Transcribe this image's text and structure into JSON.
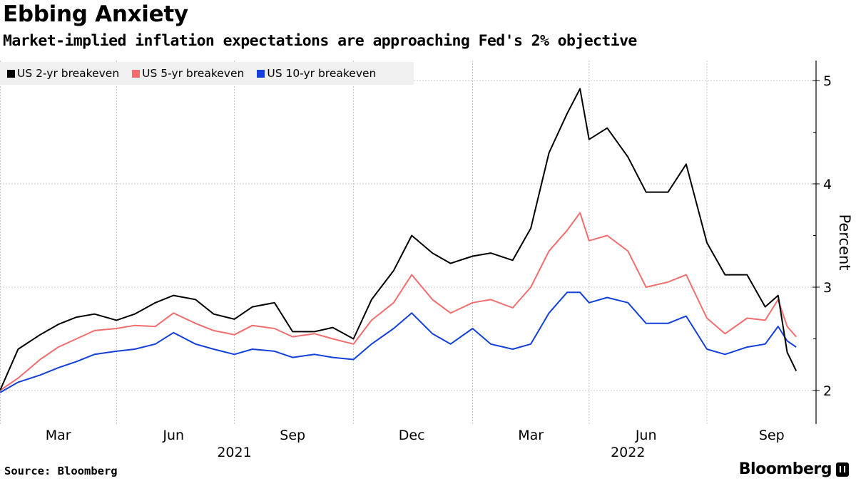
{
  "header": {
    "title": "Ebbing Anxiety",
    "subtitle": "Market-implied inflation expectations are approaching Fed's 2% objective"
  },
  "footer": {
    "source": "Source: Bloomberg",
    "logo_text": "Bloomberg"
  },
  "chart_data": {
    "type": "line",
    "title": "Ebbing Anxiety",
    "subtitle": "Market-implied inflation expectations are approaching Fed's 2% objective",
    "ylabel": "Percent",
    "xlabel": "",
    "ylim": [
      1.68,
      5.19
    ],
    "yticks": [
      2,
      3,
      4,
      5
    ],
    "y_axis_side": "right",
    "grid": true,
    "legend_placement": "top-left",
    "x_tick_labels": [
      "Mar",
      "Jun",
      "Sep",
      "Dec",
      "Mar",
      "Jun",
      "Sep"
    ],
    "x_tick_dates": [
      "2021-02-15",
      "2021-05-15",
      "2021-08-15",
      "2021-11-15",
      "2022-02-15",
      "2022-05-15",
      "2022-08-20"
    ],
    "x_year_labels": [
      {
        "label": "2021",
        "date": "2021-07-01"
      },
      {
        "label": "2022",
        "date": "2022-05-01"
      }
    ],
    "x_gridline_dates": [
      "2021-04-01",
      "2021-07-01",
      "2021-10-01",
      "2022-01-01",
      "2022-04-01",
      "2022-07-01"
    ],
    "x_range": [
      "2021-01-01",
      "2022-09-15"
    ],
    "x": [
      "2021-01-01",
      "2021-01-15",
      "2021-02-01",
      "2021-02-15",
      "2021-03-01",
      "2021-03-15",
      "2021-04-01",
      "2021-04-15",
      "2021-05-01",
      "2021-05-15",
      "2021-06-01",
      "2021-06-15",
      "2021-07-01",
      "2021-07-15",
      "2021-08-01",
      "2021-08-15",
      "2021-09-01",
      "2021-09-15",
      "2021-10-01",
      "2021-10-15",
      "2021-11-01",
      "2021-11-15",
      "2021-12-01",
      "2021-12-15",
      "2022-01-01",
      "2022-01-15",
      "2022-02-01",
      "2022-02-15",
      "2022-03-01",
      "2022-03-15",
      "2022-03-25",
      "2022-04-01",
      "2022-04-15",
      "2022-05-01",
      "2022-05-15",
      "2022-06-01",
      "2022-06-15",
      "2022-07-01",
      "2022-07-15",
      "2022-08-01",
      "2022-08-15",
      "2022-08-25",
      "2022-09-01",
      "2022-09-08"
    ],
    "series": [
      {
        "name": "US 2-yr breakeven",
        "color": "#000000",
        "values": [
          2.0,
          2.4,
          2.54,
          2.64,
          2.71,
          2.74,
          2.68,
          2.74,
          2.85,
          2.92,
          2.88,
          2.74,
          2.69,
          2.81,
          2.85,
          2.57,
          2.57,
          2.61,
          2.5,
          2.88,
          3.16,
          3.5,
          3.33,
          3.23,
          3.3,
          3.33,
          3.26,
          3.57,
          4.3,
          4.68,
          4.92,
          4.43,
          4.54,
          4.26,
          3.92,
          3.92,
          4.19,
          3.43,
          3.12,
          3.12,
          2.81,
          2.92,
          2.37,
          2.19
        ]
      },
      {
        "name": "US 5-yr breakeven",
        "color": "#f26d6d",
        "values": [
          2.0,
          2.12,
          2.3,
          2.42,
          2.5,
          2.58,
          2.6,
          2.63,
          2.62,
          2.75,
          2.65,
          2.58,
          2.54,
          2.63,
          2.6,
          2.52,
          2.55,
          2.5,
          2.45,
          2.68,
          2.85,
          3.12,
          2.88,
          2.75,
          2.85,
          2.88,
          2.8,
          3.0,
          3.35,
          3.55,
          3.72,
          3.45,
          3.5,
          3.35,
          3.0,
          3.05,
          3.12,
          2.7,
          2.55,
          2.7,
          2.68,
          2.88,
          2.62,
          2.52
        ]
      },
      {
        "name": "US 10-yr breakeven",
        "color": "#1240d8",
        "values": [
          1.98,
          2.08,
          2.15,
          2.22,
          2.28,
          2.35,
          2.38,
          2.4,
          2.45,
          2.56,
          2.45,
          2.4,
          2.35,
          2.4,
          2.38,
          2.32,
          2.35,
          2.32,
          2.3,
          2.45,
          2.6,
          2.75,
          2.55,
          2.45,
          2.6,
          2.45,
          2.4,
          2.45,
          2.75,
          2.95,
          2.95,
          2.85,
          2.9,
          2.85,
          2.65,
          2.65,
          2.72,
          2.4,
          2.35,
          2.42,
          2.45,
          2.62,
          2.48,
          2.42
        ]
      }
    ]
  }
}
